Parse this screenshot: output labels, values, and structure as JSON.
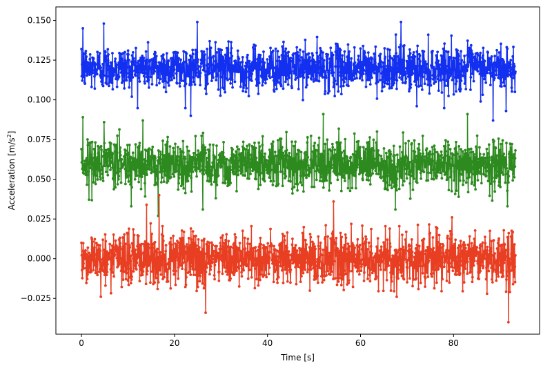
{
  "chart_data": {
    "type": "line",
    "xlabel": "Time [s]",
    "ylabel_main": "Acceleration [m/s",
    "ylabel_sup": "2",
    "ylabel_end": "]",
    "xlim": [
      -5.5,
      98.5
    ],
    "ylim": [
      -0.0475,
      0.1585
    ],
    "x_ticks": [
      0,
      20,
      40,
      60,
      80
    ],
    "x_tick_labels": [
      "0",
      "20",
      "40",
      "60",
      "80"
    ],
    "y_ticks": [
      -0.025,
      0.0,
      0.025,
      0.05,
      0.075,
      0.1,
      0.125,
      0.15
    ],
    "y_tick_labels": [
      "−0.025",
      "0.000",
      "0.025",
      "0.050",
      "0.075",
      "0.100",
      "0.125",
      "0.150"
    ],
    "grid": false,
    "legend": false,
    "duration_s": 93.3,
    "series": [
      {
        "color": "#1330f0",
        "marker": "o",
        "mean": 0.12,
        "noise_std": 0.007,
        "points": [
          [
            0.3,
            0.145
          ],
          [
            4.8,
            0.148
          ],
          [
            24.9,
            0.149
          ],
          [
            68.7,
            0.149
          ],
          [
            23.5,
            0.09
          ],
          [
            72.1,
            0.096
          ],
          [
            88.5,
            0.087
          ],
          [
            91.3,
            0.093
          ],
          [
            0.0,
            0.132
          ],
          [
            93.2,
            0.105
          ]
        ]
      },
      {
        "color": "#2d8a1f",
        "marker": "o",
        "mean": 0.06,
        "noise_std": 0.0075,
        "points": [
          [
            0.3,
            0.089
          ],
          [
            13.2,
            0.087
          ],
          [
            52.0,
            0.091
          ],
          [
            83.0,
            0.091
          ],
          [
            16.5,
            0.027
          ],
          [
            26.1,
            0.031
          ],
          [
            67.5,
            0.031
          ],
          [
            91.6,
            0.033
          ],
          [
            0.0,
            0.069
          ],
          [
            93.2,
            0.058
          ]
        ]
      },
      {
        "color": "#e83e22",
        "marker": "o",
        "mean": 0.0,
        "noise_std": 0.0085,
        "points": [
          [
            16.7,
            0.04
          ],
          [
            54.2,
            0.036
          ],
          [
            14.0,
            0.034
          ],
          [
            91.8,
            -0.04
          ],
          [
            26.7,
            -0.034
          ],
          [
            0.0,
            0.01
          ],
          [
            93.2,
            -0.005
          ]
        ]
      }
    ]
  }
}
